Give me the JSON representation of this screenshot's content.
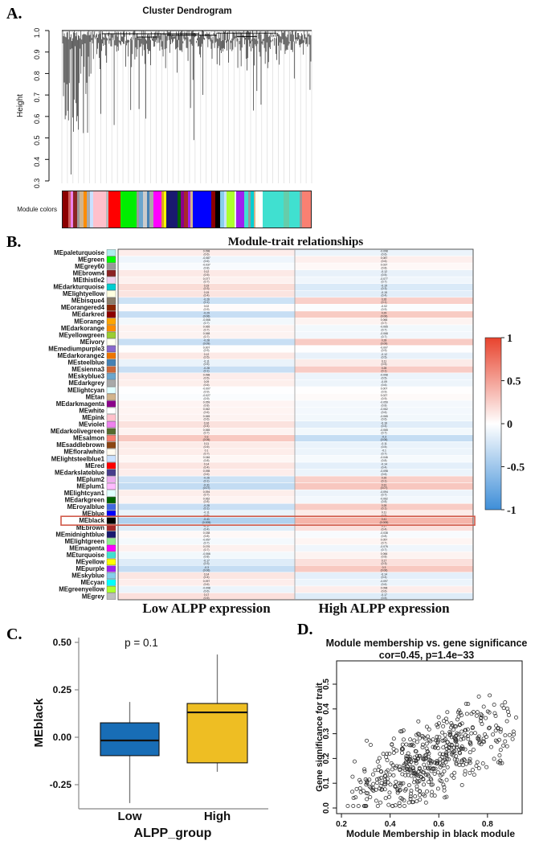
{
  "figure": {
    "panel_labels": {
      "a": "A.",
      "b": "B.",
      "c": "C.",
      "d": "D."
    }
  },
  "chart_data": [
    {
      "id": "A",
      "type": "dendrogram",
      "title": "Cluster Dendrogram",
      "ylabel": "Height",
      "ylim": [
        0.3,
        1.0
      ],
      "yticks": [
        "1.0",
        "0.9",
        "0.8",
        "0.7",
        "0.6",
        "0.5",
        "0.4",
        "0.3"
      ],
      "bar_label": "Module colors",
      "leaves": {
        "n": 300,
        "seed": 7
      },
      "connectors": [
        [
          0.16,
          0.55,
          0.985
        ],
        [
          0.42,
          0.62,
          0.978
        ],
        [
          0.3,
          0.38,
          0.97
        ],
        [
          0.62,
          0.86,
          0.988
        ],
        [
          0.7,
          0.78,
          0.972
        ]
      ],
      "bar_segments": [
        [
          "#8B0000",
          2
        ],
        [
          "#CD5C5C",
          1
        ],
        [
          "#EE82EE",
          1
        ],
        [
          "#8B2323",
          1.5
        ],
        [
          "#999999",
          1
        ],
        [
          "#D2B48C",
          1.5
        ],
        [
          "#FF8C00",
          1
        ],
        [
          "#AAAAAA",
          1.5
        ],
        [
          "#CAE1FF",
          1
        ],
        [
          "#FFC0CB",
          5
        ],
        [
          "#BBBBBB",
          1
        ],
        [
          "#FF0000",
          4.5
        ],
        [
          "#00EE00",
          6
        ],
        [
          "#999999",
          1
        ],
        [
          "#6CA6CD",
          1.5
        ],
        [
          "#CCCCCC",
          1.5
        ],
        [
          "#4682B4",
          1
        ],
        [
          "#AAAAAA",
          1.5
        ],
        [
          "#FF00FF",
          3
        ],
        [
          "#DAA520",
          1
        ],
        [
          "#FFFF00",
          0.7
        ],
        [
          "#191970",
          4.5
        ],
        [
          "#006400",
          1
        ],
        [
          "#8B008B",
          1.5
        ],
        [
          "#A52A2A",
          1.3
        ],
        [
          "#A020F0",
          1
        ],
        [
          "#D2B48C",
          0.8
        ],
        [
          "#0000FF",
          7
        ],
        [
          "#8B0000",
          1.8
        ],
        [
          "#000000",
          1.6
        ],
        [
          "#87CEEB",
          1.6
        ],
        [
          "#CAE1FF",
          1
        ],
        [
          "#ADFF2F",
          3
        ],
        [
          "#EEEEEE",
          0.7
        ],
        [
          "#A020F0",
          3
        ],
        [
          "#40E0D0",
          1.5
        ],
        [
          "#999999",
          0.8
        ],
        [
          "#00CED1",
          1.2
        ],
        [
          "#D2B48C",
          0.7
        ],
        [
          "#FFFFF0",
          1.5
        ],
        [
          "#FFFFFF",
          1.3
        ],
        [
          "#40E0D0",
          8
        ],
        [
          "#66CDAA",
          2
        ],
        [
          "#40E0D0",
          4
        ],
        [
          "#999999",
          0.8
        ],
        [
          "#FA8072",
          3.5
        ]
      ]
    },
    {
      "id": "B",
      "type": "heatmap",
      "title": "Module-trait relationships",
      "columns": [
        "Low ALPP expression",
        "High ALPP expression"
      ],
      "colorbar": {
        "ticks": [
          "1",
          "0.5",
          "0",
          "-0.5",
          "-1"
        ],
        "pos_color": "#e8432d",
        "mid_color": "#ffffff",
        "neg_color": "#3e8ed8"
      },
      "highlight_row": "MEblack",
      "highlight_color": "#d05848",
      "rows": [
        {
          "name": "MEpaleturquoise",
          "swatch": "#AFEEEE",
          "low": {
            "cor": 0.098,
            "p": "0.6"
          },
          "high": {
            "cor": -0.098,
            "p": "0.6"
          }
        },
        {
          "name": "MEgreen",
          "swatch": "#00FF00",
          "low": {
            "cor": -0.087,
            "p": "0.6"
          },
          "high": {
            "cor": 0.087,
            "p": "0.6"
          }
        },
        {
          "name": "MEgrey60",
          "swatch": "#999999",
          "low": {
            "cor": -0.037,
            "p": "0.8"
          },
          "high": {
            "cor": 0.037,
            "p": "0.8"
          }
        },
        {
          "name": "MEbrown4",
          "swatch": "#8B2323",
          "low": {
            "cor": 0.12,
            "p": "0.5"
          },
          "high": {
            "cor": -0.12,
            "p": "0.5"
          }
        },
        {
          "name": "MEthistle2",
          "swatch": "#EED2EE",
          "low": {
            "cor": 0.077,
            "p": "0.7"
          },
          "high": {
            "cor": -0.077,
            "p": "0.7"
          }
        },
        {
          "name": "MEdarkturquoise",
          "swatch": "#00CED1",
          "low": {
            "cor": 0.19,
            "p": "0.3"
          },
          "high": {
            "cor": -0.19,
            "p": "0.3"
          }
        },
        {
          "name": "MElightyellow",
          "swatch": "#FFFFE0",
          "low": {
            "cor": 0.15,
            "p": "0.4"
          },
          "high": {
            "cor": -0.15,
            "p": "0.4"
          }
        },
        {
          "name": "MEbisque4",
          "swatch": "#8B7D6B",
          "low": {
            "cor": -0.26,
            "p": "0.1"
          },
          "high": {
            "cor": 0.26,
            "p": "0.1"
          }
        },
        {
          "name": "MEorangered4",
          "swatch": "#8B2500",
          "low": {
            "cor": 0.02,
            "p": "0.9"
          },
          "high": {
            "cor": -0.02,
            "p": "0.9"
          }
        },
        {
          "name": "MEdarkred",
          "swatch": "#8B0000",
          "low": {
            "cor": -0.29,
            "p": "0.06"
          },
          "high": {
            "cor": 0.29,
            "p": "0.06"
          }
        },
        {
          "name": "MEorange",
          "swatch": "#FFA500",
          "low": {
            "cor": -0.066,
            "p": "0.7"
          },
          "high": {
            "cor": 0.066,
            "p": "0.7"
          }
        },
        {
          "name": "MEdarkorange",
          "swatch": "#FF8C00",
          "low": {
            "cor": 0.065,
            "p": "0.7"
          },
          "high": {
            "cor": -0.065,
            "p": "0.7"
          }
        },
        {
          "name": "MEyellowgreen",
          "swatch": "#9ACD32",
          "low": {
            "cor": 0.068,
            "p": "0.7"
          },
          "high": {
            "cor": -0.068,
            "p": "0.7"
          }
        },
        {
          "name": "MEivory",
          "swatch": "#FFFFF0",
          "low": {
            "cor": -0.28,
            "p": "0.09"
          },
          "high": {
            "cor": 0.28,
            "p": "0.09"
          }
        },
        {
          "name": "MEmediumpurple3",
          "swatch": "#8968CD",
          "low": {
            "cor": 0.007,
            "p": "0.9"
          },
          "high": {
            "cor": -0.007,
            "p": "0.9"
          }
        },
        {
          "name": "MEdarkorange2",
          "swatch": "#EE7600",
          "low": {
            "cor": 0.12,
            "p": "0.5"
          },
          "high": {
            "cor": -0.12,
            "p": "0.5"
          }
        },
        {
          "name": "MEsteelblue",
          "swatch": "#4682B4",
          "low": {
            "cor": -0.11,
            "p": "0.5"
          },
          "high": {
            "cor": 0.11,
            "p": "0.5"
          }
        },
        {
          "name": "MEsienna3",
          "swatch": "#CD6839",
          "low": {
            "cor": -0.28,
            "p": "0.1"
          },
          "high": {
            "cor": 0.28,
            "p": "0.1"
          }
        },
        {
          "name": "MEskyblue3",
          "swatch": "#6CA6CD",
          "low": {
            "cor": 0.098,
            "p": "0.5"
          },
          "high": {
            "cor": -0.098,
            "p": "0.5"
          }
        },
        {
          "name": "MEdarkgrey",
          "swatch": "#A9A9A9",
          "low": {
            "cor": 0.09,
            "p": "0.6"
          },
          "high": {
            "cor": -0.09,
            "p": "0.6"
          }
        },
        {
          "name": "MElightcyan",
          "swatch": "#E0FFFF",
          "low": {
            "cor": -0.007,
            "p": "0.9"
          },
          "high": {
            "cor": 0.007,
            "p": "0.9"
          }
        },
        {
          "name": "MEtan",
          "swatch": "#D2B48C",
          "low": {
            "cor": -0.027,
            "p": "0.9"
          },
          "high": {
            "cor": 0.027,
            "p": "0.9"
          }
        },
        {
          "name": "MEdarkmagenta",
          "swatch": "#8B008B",
          "low": {
            "cor": 0.059,
            "p": "0.8"
          },
          "high": {
            "cor": -0.059,
            "p": "0.8"
          }
        },
        {
          "name": "MEwhite",
          "swatch": "#FFFFFF",
          "low": {
            "cor": 0.062,
            "p": "0.6"
          },
          "high": {
            "cor": -0.062,
            "p": "0.6"
          }
        },
        {
          "name": "MEpink",
          "swatch": "#FFC0CB",
          "low": {
            "cor": 0.065,
            "p": "0.6"
          },
          "high": {
            "cor": -0.065,
            "p": "0.6"
          }
        },
        {
          "name": "MEviolet",
          "swatch": "#EE82EE",
          "low": {
            "cor": 0.16,
            "p": "0.4"
          },
          "high": {
            "cor": -0.16,
            "p": "0.4"
          }
        },
        {
          "name": "MEdarkolivegreen",
          "swatch": "#556B2F",
          "low": {
            "cor": 0.065,
            "p": "0.7"
          },
          "high": {
            "cor": -0.065,
            "p": "0.7"
          }
        },
        {
          "name": "MEsalmon",
          "swatch": "#FA8072",
          "low": {
            "cor": 0.3,
            "p": "0.06"
          },
          "high": {
            "cor": -0.3,
            "p": "0.06"
          }
        },
        {
          "name": "MEsaddlebrown",
          "swatch": "#8B4513",
          "low": {
            "cor": 0.11,
            "p": "0.5"
          },
          "high": {
            "cor": -0.11,
            "p": "0.5"
          }
        },
        {
          "name": "MEfloralwhite",
          "swatch": "#FFFAF0",
          "low": {
            "cor": 0.1,
            "p": "0.7"
          },
          "high": {
            "cor": -0.1,
            "p": "0.7"
          }
        },
        {
          "name": "MElightsteelblue1",
          "swatch": "#CAE1FF",
          "low": {
            "cor": 0.046,
            "p": "0.8"
          },
          "high": {
            "cor": -0.046,
            "p": "0.8"
          }
        },
        {
          "name": "MEred",
          "swatch": "#FF0000",
          "low": {
            "cor": 0.14,
            "p": "0.4"
          },
          "high": {
            "cor": -0.14,
            "p": "0.4"
          }
        },
        {
          "name": "MEdarkslateblue",
          "swatch": "#483D8B",
          "low": {
            "cor": 0.098,
            "p": "0.6"
          },
          "high": {
            "cor": -0.098,
            "p": "0.6"
          }
        },
        {
          "name": "MEplum2",
          "swatch": "#EEAEEE",
          "low": {
            "cor": -0.26,
            "p": "0.1"
          },
          "high": {
            "cor": 0.26,
            "p": "0.1"
          }
        },
        {
          "name": "MEplum1",
          "swatch": "#FFBBFF",
          "low": {
            "cor": -0.31,
            "p": "0.07"
          },
          "high": {
            "cor": 0.31,
            "p": "0.07"
          }
        },
        {
          "name": "MElightcyan1",
          "swatch": "#E0FFFF",
          "low": {
            "cor": 0.094,
            "p": "0.7"
          },
          "high": {
            "cor": -0.094,
            "p": "0.7"
          }
        },
        {
          "name": "MEdarkgreen",
          "swatch": "#006400",
          "low": {
            "cor": 0.062,
            "p": "0.8"
          },
          "high": {
            "cor": -0.062,
            "p": "0.8"
          }
        },
        {
          "name": "MEroyalblue",
          "swatch": "#4169E1",
          "low": {
            "cor": -0.28,
            "p": "0.1"
          },
          "high": {
            "cor": 0.28,
            "p": "0.1"
          }
        },
        {
          "name": "MEblue",
          "swatch": "#0000FF",
          "low": {
            "cor": -0.11,
            "p": "0.5"
          },
          "high": {
            "cor": 0.11,
            "p": "0.5"
          }
        },
        {
          "name": "MEblack",
          "swatch": "#000000",
          "low": {
            "cor": -0.41,
            "p": "0.005"
          },
          "high": {
            "cor": 0.41,
            "p": "0.005"
          }
        },
        {
          "name": "MEbrown",
          "swatch": "#A52A2A",
          "low": {
            "cor": -0.17,
            "p": "0.4"
          },
          "high": {
            "cor": 0.17,
            "p": "0.4"
          }
        },
        {
          "name": "MEmidnightblue",
          "swatch": "#191970",
          "low": {
            "cor": 0.038,
            "p": "0.8"
          },
          "high": {
            "cor": -0.038,
            "p": "0.8"
          }
        },
        {
          "name": "MElightgreen",
          "swatch": "#90EE90",
          "low": {
            "cor": -0.057,
            "p": "0.7"
          },
          "high": {
            "cor": 0.057,
            "p": "0.7"
          }
        },
        {
          "name": "MEmagenta",
          "swatch": "#FF00FF",
          "low": {
            "cor": 0.076,
            "p": "0.7"
          },
          "high": {
            "cor": -0.076,
            "p": "0.7"
          }
        },
        {
          "name": "MEturquoise",
          "swatch": "#40E0D0",
          "low": {
            "cor": -0.066,
            "p": "0.8"
          },
          "high": {
            "cor": 0.066,
            "p": "0.8"
          }
        },
        {
          "name": "MEyellow",
          "swatch": "#FFFF00",
          "low": {
            "cor": -0.17,
            "p": "0.3"
          },
          "high": {
            "cor": 0.17,
            "p": "0.3"
          }
        },
        {
          "name": "MEpurple",
          "swatch": "#A020F0",
          "low": {
            "cor": -0.3,
            "p": "0.06"
          },
          "high": {
            "cor": 0.3,
            "p": "0.06"
          }
        },
        {
          "name": "MEskyblue",
          "swatch": "#87CEEB",
          "low": {
            "cor": 0.14,
            "p": "0.4"
          },
          "high": {
            "cor": -0.14,
            "p": "0.4"
          }
        },
        {
          "name": "MEcyan",
          "swatch": "#00FFFF",
          "low": {
            "cor": 0.097,
            "p": "0.6"
          },
          "high": {
            "cor": -0.097,
            "p": "0.6"
          }
        },
        {
          "name": "MEgreenyellow",
          "swatch": "#ADFF2F",
          "low": {
            "cor": -0.098,
            "p": "0.6"
          },
          "high": {
            "cor": 0.098,
            "p": "0.6"
          }
        },
        {
          "name": "MEgrey",
          "swatch": "#BEBEBE",
          "low": {
            "cor": 0.17,
            "p": "0.5"
          },
          "high": {
            "cor": -0.17,
            "p": "0.5"
          }
        }
      ]
    },
    {
      "id": "C",
      "type": "box",
      "p_label": "p = 0.1",
      "xlabel": "ALPP_group",
      "ylabel": "MEblack",
      "yticks": [
        {
          "v": 0.5,
          "label": "0.50"
        },
        {
          "v": 0.25,
          "label": "0.25"
        },
        {
          "v": 0.0,
          "label": "0.00"
        },
        {
          "v": -0.25,
          "label": "-0.25"
        }
      ],
      "ylim": [
        -0.38,
        0.55
      ],
      "categories": [
        "Low",
        "High"
      ],
      "series": [
        {
          "name": "Low",
          "color": "#186db6",
          "min": -0.347,
          "q1": -0.097,
          "median": -0.017,
          "q3": 0.076,
          "max": 0.186
        },
        {
          "name": "High",
          "color": "#eebe23",
          "min": -0.182,
          "q1": -0.135,
          "median": 0.131,
          "q3": 0.178,
          "max": 0.436
        }
      ]
    },
    {
      "id": "D",
      "type": "scatter",
      "title": "Module membership vs. gene significance",
      "subtitle": "cor=0.45, p=1.4e−33",
      "xlabel": "Module Membership in black module",
      "ylabel": "Gene significance for trait",
      "xticks": [
        {
          "v": 0.2,
          "label": "0.2"
        },
        {
          "v": 0.4,
          "label": "0.4"
        },
        {
          "v": 0.6,
          "label": "0.6"
        },
        {
          "v": 0.8,
          "label": "0.8"
        }
      ],
      "yticks": [
        {
          "v": 0.0,
          "label": "0.0"
        },
        {
          "v": 0.1,
          "label": "0.1"
        },
        {
          "v": 0.2,
          "label": "0.2"
        },
        {
          "v": 0.3,
          "label": "0.3"
        },
        {
          "v": 0.4,
          "label": "0.4"
        },
        {
          "v": 0.5,
          "label": "0.5"
        }
      ],
      "xlim": [
        0.18,
        0.94
      ],
      "ylim": [
        0.0,
        0.59
      ],
      "correlation": 0.45,
      "points": {
        "n": 520,
        "seed": 11,
        "x_min": 0.2,
        "x_max": 0.94,
        "y_min": 0.008,
        "y_max": 0.562,
        "intercept": 0.05,
        "slope_span": 0.3,
        "noise": 0.19
      }
    }
  ]
}
